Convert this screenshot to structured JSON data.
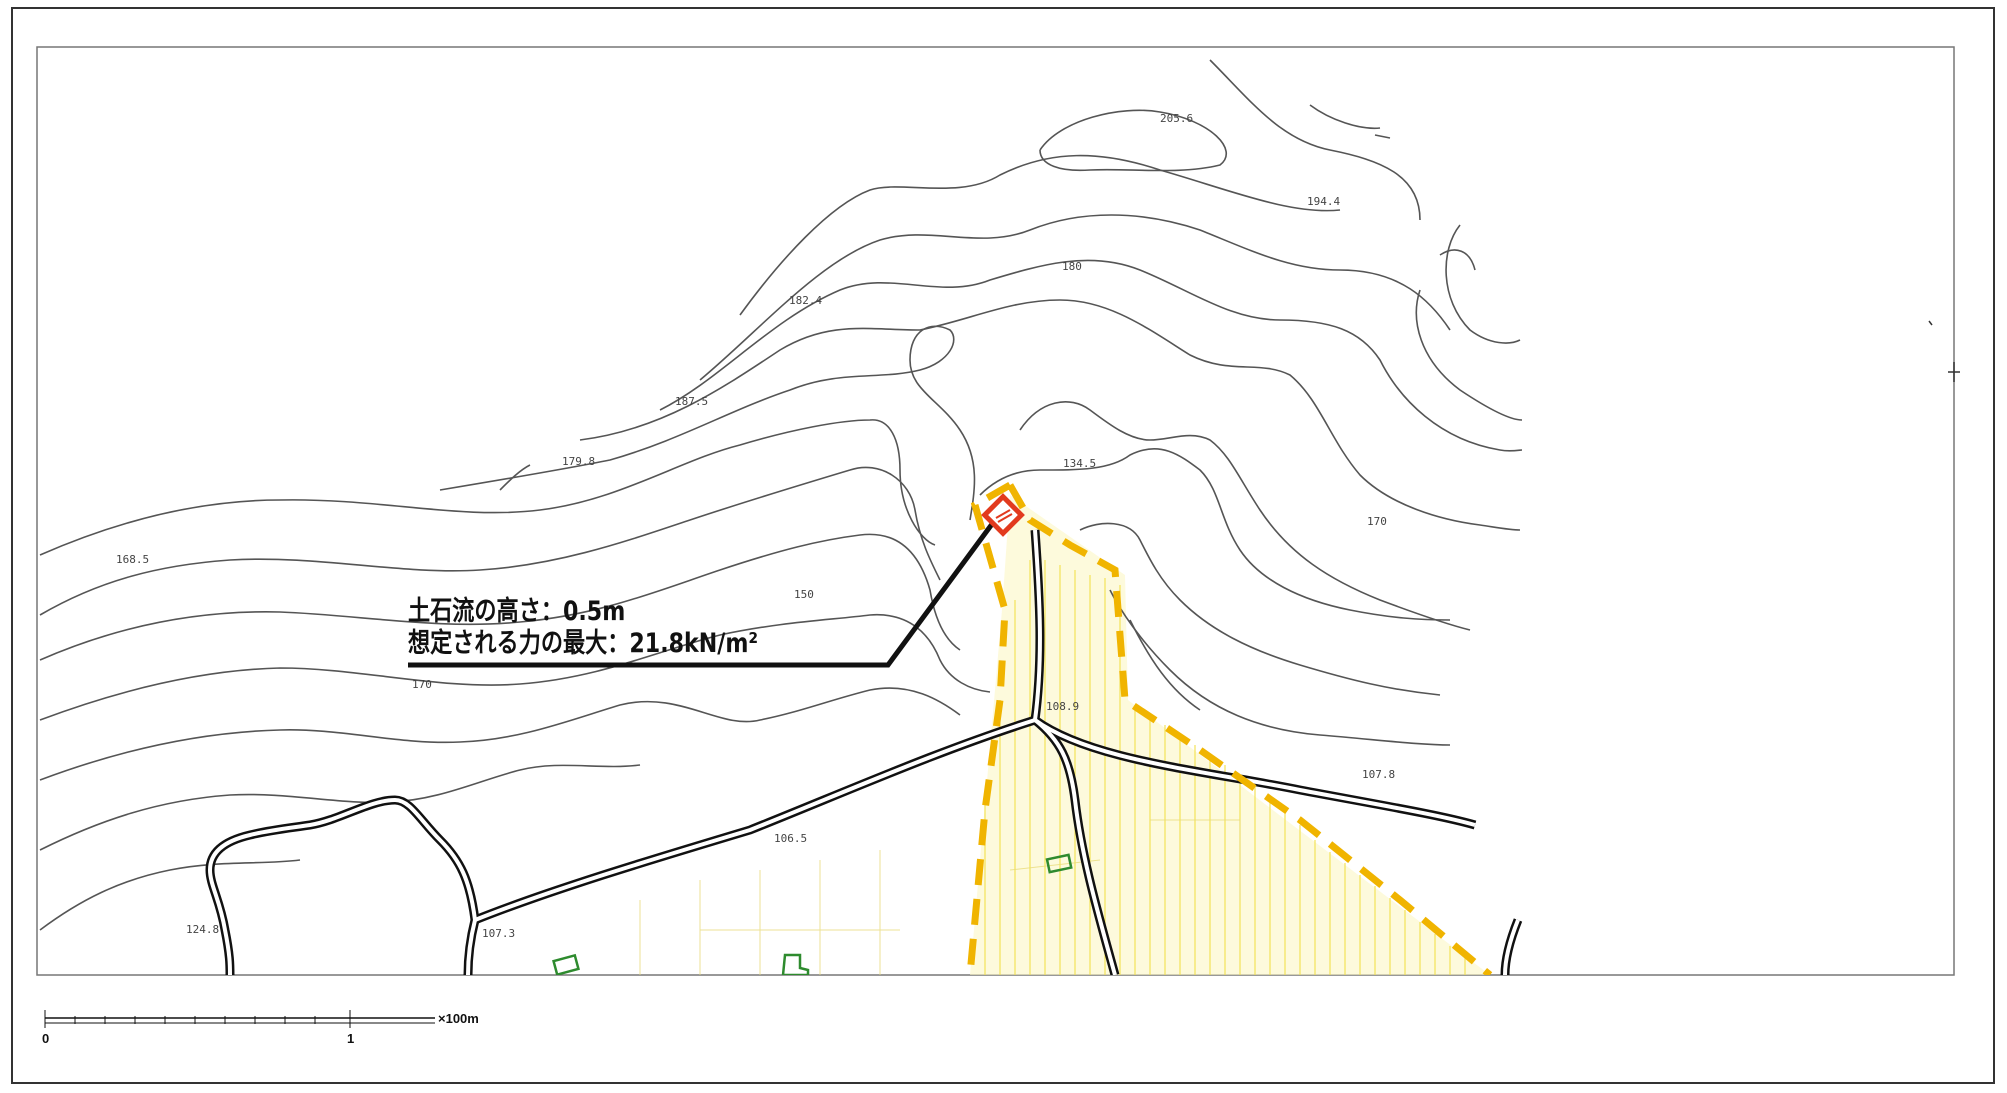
{
  "map": {
    "annotation": {
      "line1": "土石流の高さ：0.5m",
      "line2": "想定される力の最大：21.8kN/m²"
    },
    "elevations": [
      "205.6",
      "194.4",
      "180",
      "182.4",
      "187.5",
      "179.8",
      "134.5",
      "170",
      "168.5",
      "150",
      "170",
      "108.9",
      "107.8",
      "106.5",
      "107.3",
      "124.8"
    ],
    "scale_bar": {
      "start": "0",
      "mid": "1",
      "unit": "×100m"
    },
    "colors": {
      "contour": "#555555",
      "road": "#111111",
      "hazard_outline": "#f0b400",
      "hazard_hatch": "#f2e04a",
      "source_marker": "#e23a1e",
      "building": "#2e8b2e",
      "leader": "#111111"
    }
  }
}
